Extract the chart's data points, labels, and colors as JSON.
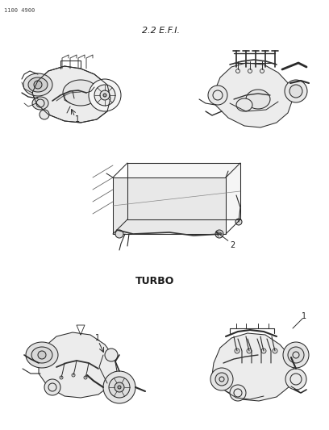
{
  "background_color": "#ffffff",
  "page_id": "1100 4900",
  "title_efi": "2.2 E.F.I.",
  "title_turbo": "TURBO",
  "label_1a": "1",
  "label_1b": "1",
  "label_2": "2",
  "label_turbo_1": "1",
  "line_color": "#2a2a2a",
  "text_color": "#1a1a1a",
  "page_id_color": "#444444",
  "fig_width": 4.08,
  "fig_height": 5.33,
  "dpi": 100
}
